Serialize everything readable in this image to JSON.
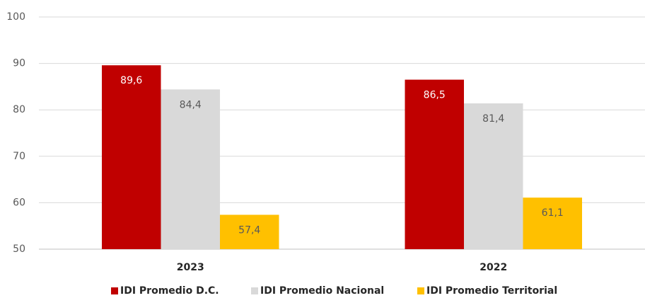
{
  "chart_data": {
    "type": "bar",
    "categories": [
      "2023",
      "2022"
    ],
    "series": [
      {
        "name": "IDI Promedio D.C.",
        "color": "#c00000",
        "values": [
          89.6,
          86.5
        ],
        "value_labels": [
          "89,6",
          "86,5"
        ]
      },
      {
        "name": "IDI Promedio Nacional",
        "color": "#d9d9d9",
        "values": [
          84.4,
          81.4
        ],
        "value_labels": [
          "84,4",
          "81,4"
        ]
      },
      {
        "name": "IDI Promedio Territorial",
        "color": "#ffc000",
        "values": [
          57.4,
          61.1
        ],
        "value_labels": [
          "57,4",
          "61,1"
        ]
      }
    ],
    "ylim": [
      50,
      100
    ],
    "yticks": [
      50,
      60,
      70,
      80,
      90,
      100
    ],
    "grid": true,
    "legend": "bottom"
  }
}
